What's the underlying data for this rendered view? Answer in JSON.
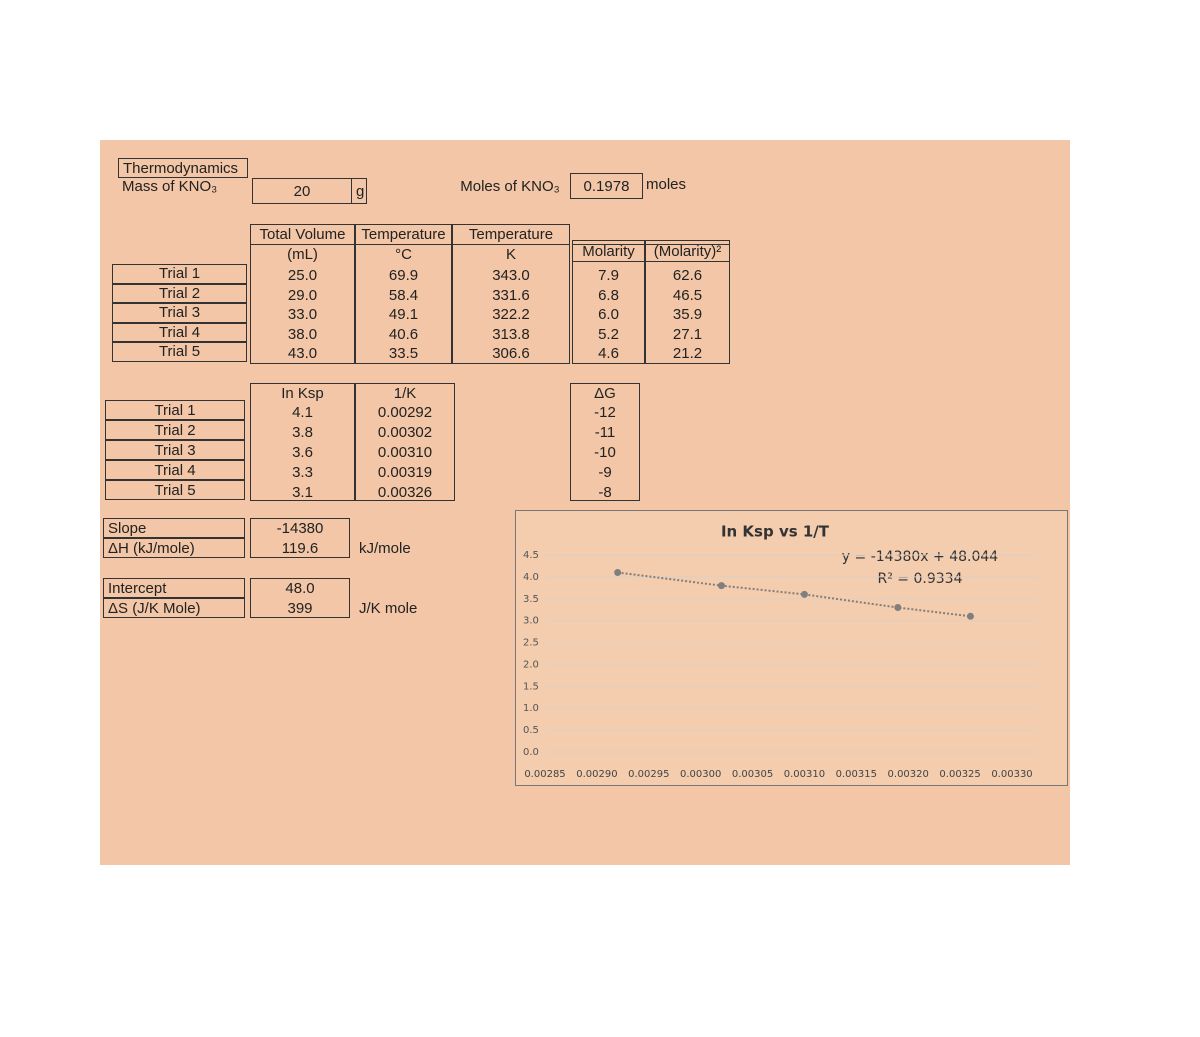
{
  "header": {
    "title": "Thermodynamics",
    "mass_label": "Mass of KNO₃",
    "mass_value": "20",
    "mass_unit": "g",
    "moles_label": "Moles of KNO₃",
    "moles_value": "0.1978",
    "moles_unit": "moles"
  },
  "table1": {
    "columns": [
      [
        "Total Volume",
        "(mL)"
      ],
      [
        "Temperature",
        "°C"
      ],
      [
        "Temperature",
        "K"
      ],
      [
        "Molarity"
      ],
      [
        "(Molarity)²"
      ]
    ],
    "rows": [
      [
        "Trial 1",
        "25.0",
        "69.9",
        "343.0",
        "7.9",
        "62.6"
      ],
      [
        "Trial 2",
        "29.0",
        "58.4",
        "331.6",
        "6.8",
        "46.5"
      ],
      [
        "Trial 3",
        "33.0",
        "49.1",
        "322.2",
        "6.0",
        "35.9"
      ],
      [
        "Trial 4",
        "38.0",
        "40.6",
        "313.8",
        "5.2",
        "27.1"
      ],
      [
        "Trial 5",
        "43.0",
        "33.5",
        "306.6",
        "4.6",
        "21.2"
      ]
    ]
  },
  "table2": {
    "columns": [
      "In Ksp",
      "1/K",
      "ΔG"
    ],
    "rows": [
      [
        "Trial 1",
        "4.1",
        "0.00292",
        "-12"
      ],
      [
        "Trial 2",
        "3.8",
        "0.00302",
        "-11"
      ],
      [
        "Trial 3",
        "3.6",
        "0.00310",
        "-10"
      ],
      [
        "Trial 4",
        "3.3",
        "0.00319",
        "-9"
      ],
      [
        "Trial 5",
        "3.1",
        "0.00326",
        "-8"
      ]
    ]
  },
  "results": [
    {
      "label": "Slope",
      "value": "-14380"
    },
    {
      "label": "ΔH (kJ/mole)",
      "value": "119.6",
      "unit": "kJ/mole"
    },
    {
      "label": "Intercept",
      "value": "48.0"
    },
    {
      "label": "ΔS (J/K Mole)",
      "value": "399",
      "unit": "J/K mole"
    }
  ],
  "chart_data": {
    "type": "scatter",
    "title": "In Ksp vs 1/T",
    "x": [
      0.00292,
      0.00302,
      0.0031,
      0.00319,
      0.00326
    ],
    "values": [
      4.1,
      3.8,
      3.6,
      3.3,
      3.1
    ],
    "color": "#7f7f7f",
    "line_style": "dotted",
    "annotations": [
      "y = -14380x + 48.044",
      "R² = 0.9334"
    ],
    "xlim": [
      0.00285,
      0.0033
    ],
    "xticks": [
      0.00285,
      {
        "value": 0.0029,
        "label": "0.00290"
      },
      0.00295,
      {
        "value": 0.003,
        "label": "0.00300"
      },
      0.00305,
      {
        "value": 0.0031,
        "label": "0.00310"
      },
      0.00315,
      {
        "value": 0.0032,
        "label": "0.00320"
      },
      0.00325,
      {
        "value": 0.0033,
        "label": "0.00330"
      }
    ],
    "ylim": [
      0,
      4.5
    ],
    "yticks": [
      {
        "value": 0,
        "label": "0.0"
      },
      0.5,
      {
        "value": 1,
        "label": "1.0"
      },
      1.5,
      {
        "value": 2,
        "label": "2.0"
      },
      2.5,
      {
        "value": 3,
        "label": "3.0"
      },
      3.5,
      {
        "value": 4,
        "label": "4.0"
      },
      4.5
    ],
    "grid": true
  }
}
